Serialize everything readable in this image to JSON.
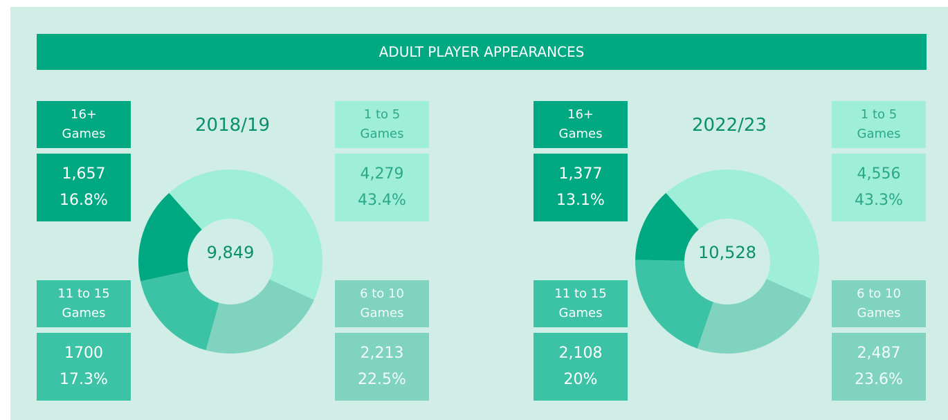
{
  "title": "ADULT PLAYER APPEARANCES",
  "chart_data": [
    {
      "type": "pie",
      "title": "2018/19",
      "total": 9849,
      "total_label": "9,849",
      "categories": [
        "1 to 5 Games",
        "6 to 10 Games",
        "11 to 15 Games",
        "16+ Games"
      ],
      "values": [
        4279,
        2213,
        1700,
        1657
      ],
      "value_labels": [
        "4,279",
        "2,213",
        "1700",
        "1,657"
      ],
      "percentages": [
        43.4,
        22.5,
        17.3,
        16.8
      ],
      "percentage_labels": [
        "43.4%",
        "22.5%",
        "17.3%",
        "16.8%"
      ],
      "colors": [
        "#9feed8",
        "#80d3bf",
        "#3cc3a5",
        "#00a982"
      ]
    },
    {
      "type": "pie",
      "title": "2022/23",
      "total": 10528,
      "total_label": "10,528",
      "categories": [
        "1 to 5 Games",
        "6 to 10 Games",
        "11 to 15 Games",
        "16+ Games"
      ],
      "values": [
        4556,
        2487,
        2108,
        1377
      ],
      "value_labels": [
        "4,556",
        "2,487",
        "2,108",
        "1,377"
      ],
      "percentages": [
        43.3,
        23.6,
        20,
        13.1
      ],
      "percentage_labels": [
        "43.3%",
        "23.6%",
        "20%",
        "13.1%"
      ],
      "colors": [
        "#9feed8",
        "#80d3bf",
        "#3cc3a5",
        "#00a982"
      ]
    }
  ]
}
